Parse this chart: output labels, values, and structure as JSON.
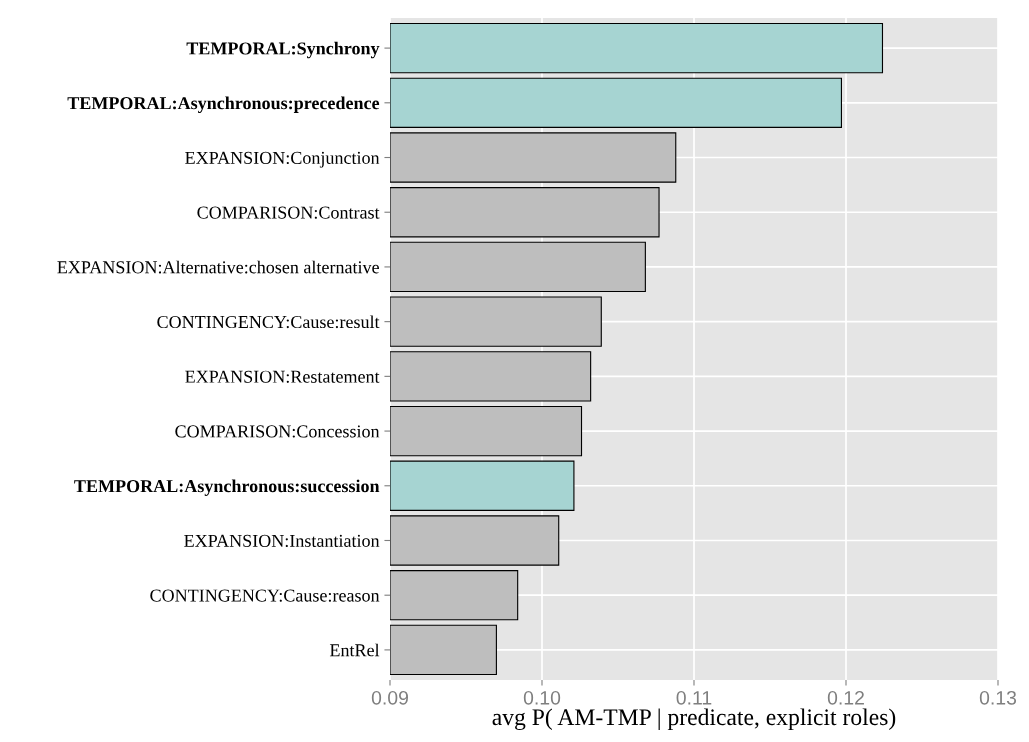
{
  "chart_data": {
    "type": "bar",
    "orientation": "horizontal",
    "xlabel": "avg P( AM-TMP | predicate, explicit roles)",
    "categories": [
      "TEMPORAL:Synchrony",
      "TEMPORAL:Asynchronous:precedence",
      "EXPANSION:Conjunction",
      "COMPARISON:Contrast",
      "EXPANSION:Alternative:chosen alternative",
      "CONTINGENCY:Cause:result",
      "EXPANSION:Restatement",
      "COMPARISON:Concession",
      "TEMPORAL:Asynchronous:succession",
      "EXPANSION:Instantiation",
      "CONTINGENCY:Cause:reason",
      "EntRel"
    ],
    "values": [
      0.1224,
      0.1197,
      0.1088,
      0.1077,
      0.1068,
      0.1039,
      0.1032,
      0.1026,
      0.1021,
      0.1011,
      0.0984,
      0.097
    ],
    "colors": [
      "#a6d4d2",
      "#a6d4d2",
      "#bebebe",
      "#bebebe",
      "#bebebe",
      "#bebebe",
      "#bebebe",
      "#bebebe",
      "#a6d4d2",
      "#bebebe",
      "#bebebe",
      "#bebebe"
    ],
    "xlim": [
      0.09,
      0.13
    ],
    "xticks": [
      {
        "value": 0.09,
        "label": "0.09"
      },
      {
        "value": 0.1,
        "label": "0.10"
      },
      {
        "value": 0.11,
        "label": "0.11"
      },
      {
        "value": 0.12,
        "label": "0.12"
      },
      {
        "value": 0.13,
        "label": "0.13"
      }
    ],
    "grid": true
  }
}
